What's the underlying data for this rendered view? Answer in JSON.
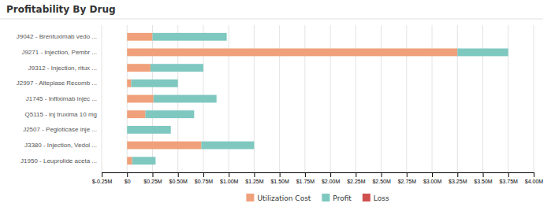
{
  "chart_data": {
    "type": "bar",
    "orientation": "horizontal",
    "stacked": true,
    "title": "Profitability By Drug",
    "categories": [
      "J9042 - Brentuximab vedo ...",
      "J9271 - Injection, Pembr ...",
      "J9312 - Injection, ritux ...",
      "J2997 - Alteplase Recomb ...",
      "J1745 - Infliximab injec ...",
      "Q5115 - inj truxima 10 mg",
      "J2507 - Pegloticase inje ...",
      "J3380 - Injection, Vedol ...",
      "J1950 - Leuprolide aceta ..."
    ],
    "series": [
      {
        "name": "Utilization Cost",
        "color": "#f0a07a",
        "values": [
          0.25,
          3.25,
          0.23,
          0.04,
          0.26,
          0.18,
          0.0,
          0.73,
          0.05
        ]
      },
      {
        "name": "Profit",
        "color": "#7ec8c0",
        "values": [
          0.73,
          0.5,
          0.52,
          0.46,
          0.62,
          0.48,
          0.43,
          0.52,
          0.23
        ]
      },
      {
        "name": "Loss",
        "color": "#d05050",
        "values": [
          0.0,
          0.0,
          0.0,
          0.0,
          0.0,
          0.0,
          0.0,
          0.0,
          0.0
        ]
      }
    ],
    "xlim": [
      -0.25,
      4.0
    ],
    "xticks": [
      {
        "value": -0.25,
        "label": "$-0.25M"
      },
      {
        "value": 0,
        "label": "$0"
      },
      {
        "value": 0.25,
        "label": "$0.25M"
      },
      {
        "value": 0.5,
        "label": "$0.50M"
      },
      {
        "value": 0.75,
        "label": "$0.75M"
      },
      {
        "value": 1.0,
        "label": "$1.00M"
      },
      {
        "value": 1.25,
        "label": "$1.25M"
      },
      {
        "value": 1.5,
        "label": "$1.50M"
      },
      {
        "value": 1.75,
        "label": "$1.75M"
      },
      {
        "value": 2.0,
        "label": "$2.00M"
      },
      {
        "value": 2.25,
        "label": "$2.25M"
      },
      {
        "value": 2.5,
        "label": "$2.50M"
      },
      {
        "value": 2.75,
        "label": "$2.75M"
      },
      {
        "value": 3.0,
        "label": "$3.00M"
      },
      {
        "value": 3.25,
        "label": "$3.25M"
      },
      {
        "value": 3.5,
        "label": "$3.50M"
      },
      {
        "value": 3.75,
        "label": "$3.75M"
      },
      {
        "value": 4.0,
        "label": "$4.00M"
      }
    ],
    "grid": true,
    "legend": "bottom"
  }
}
